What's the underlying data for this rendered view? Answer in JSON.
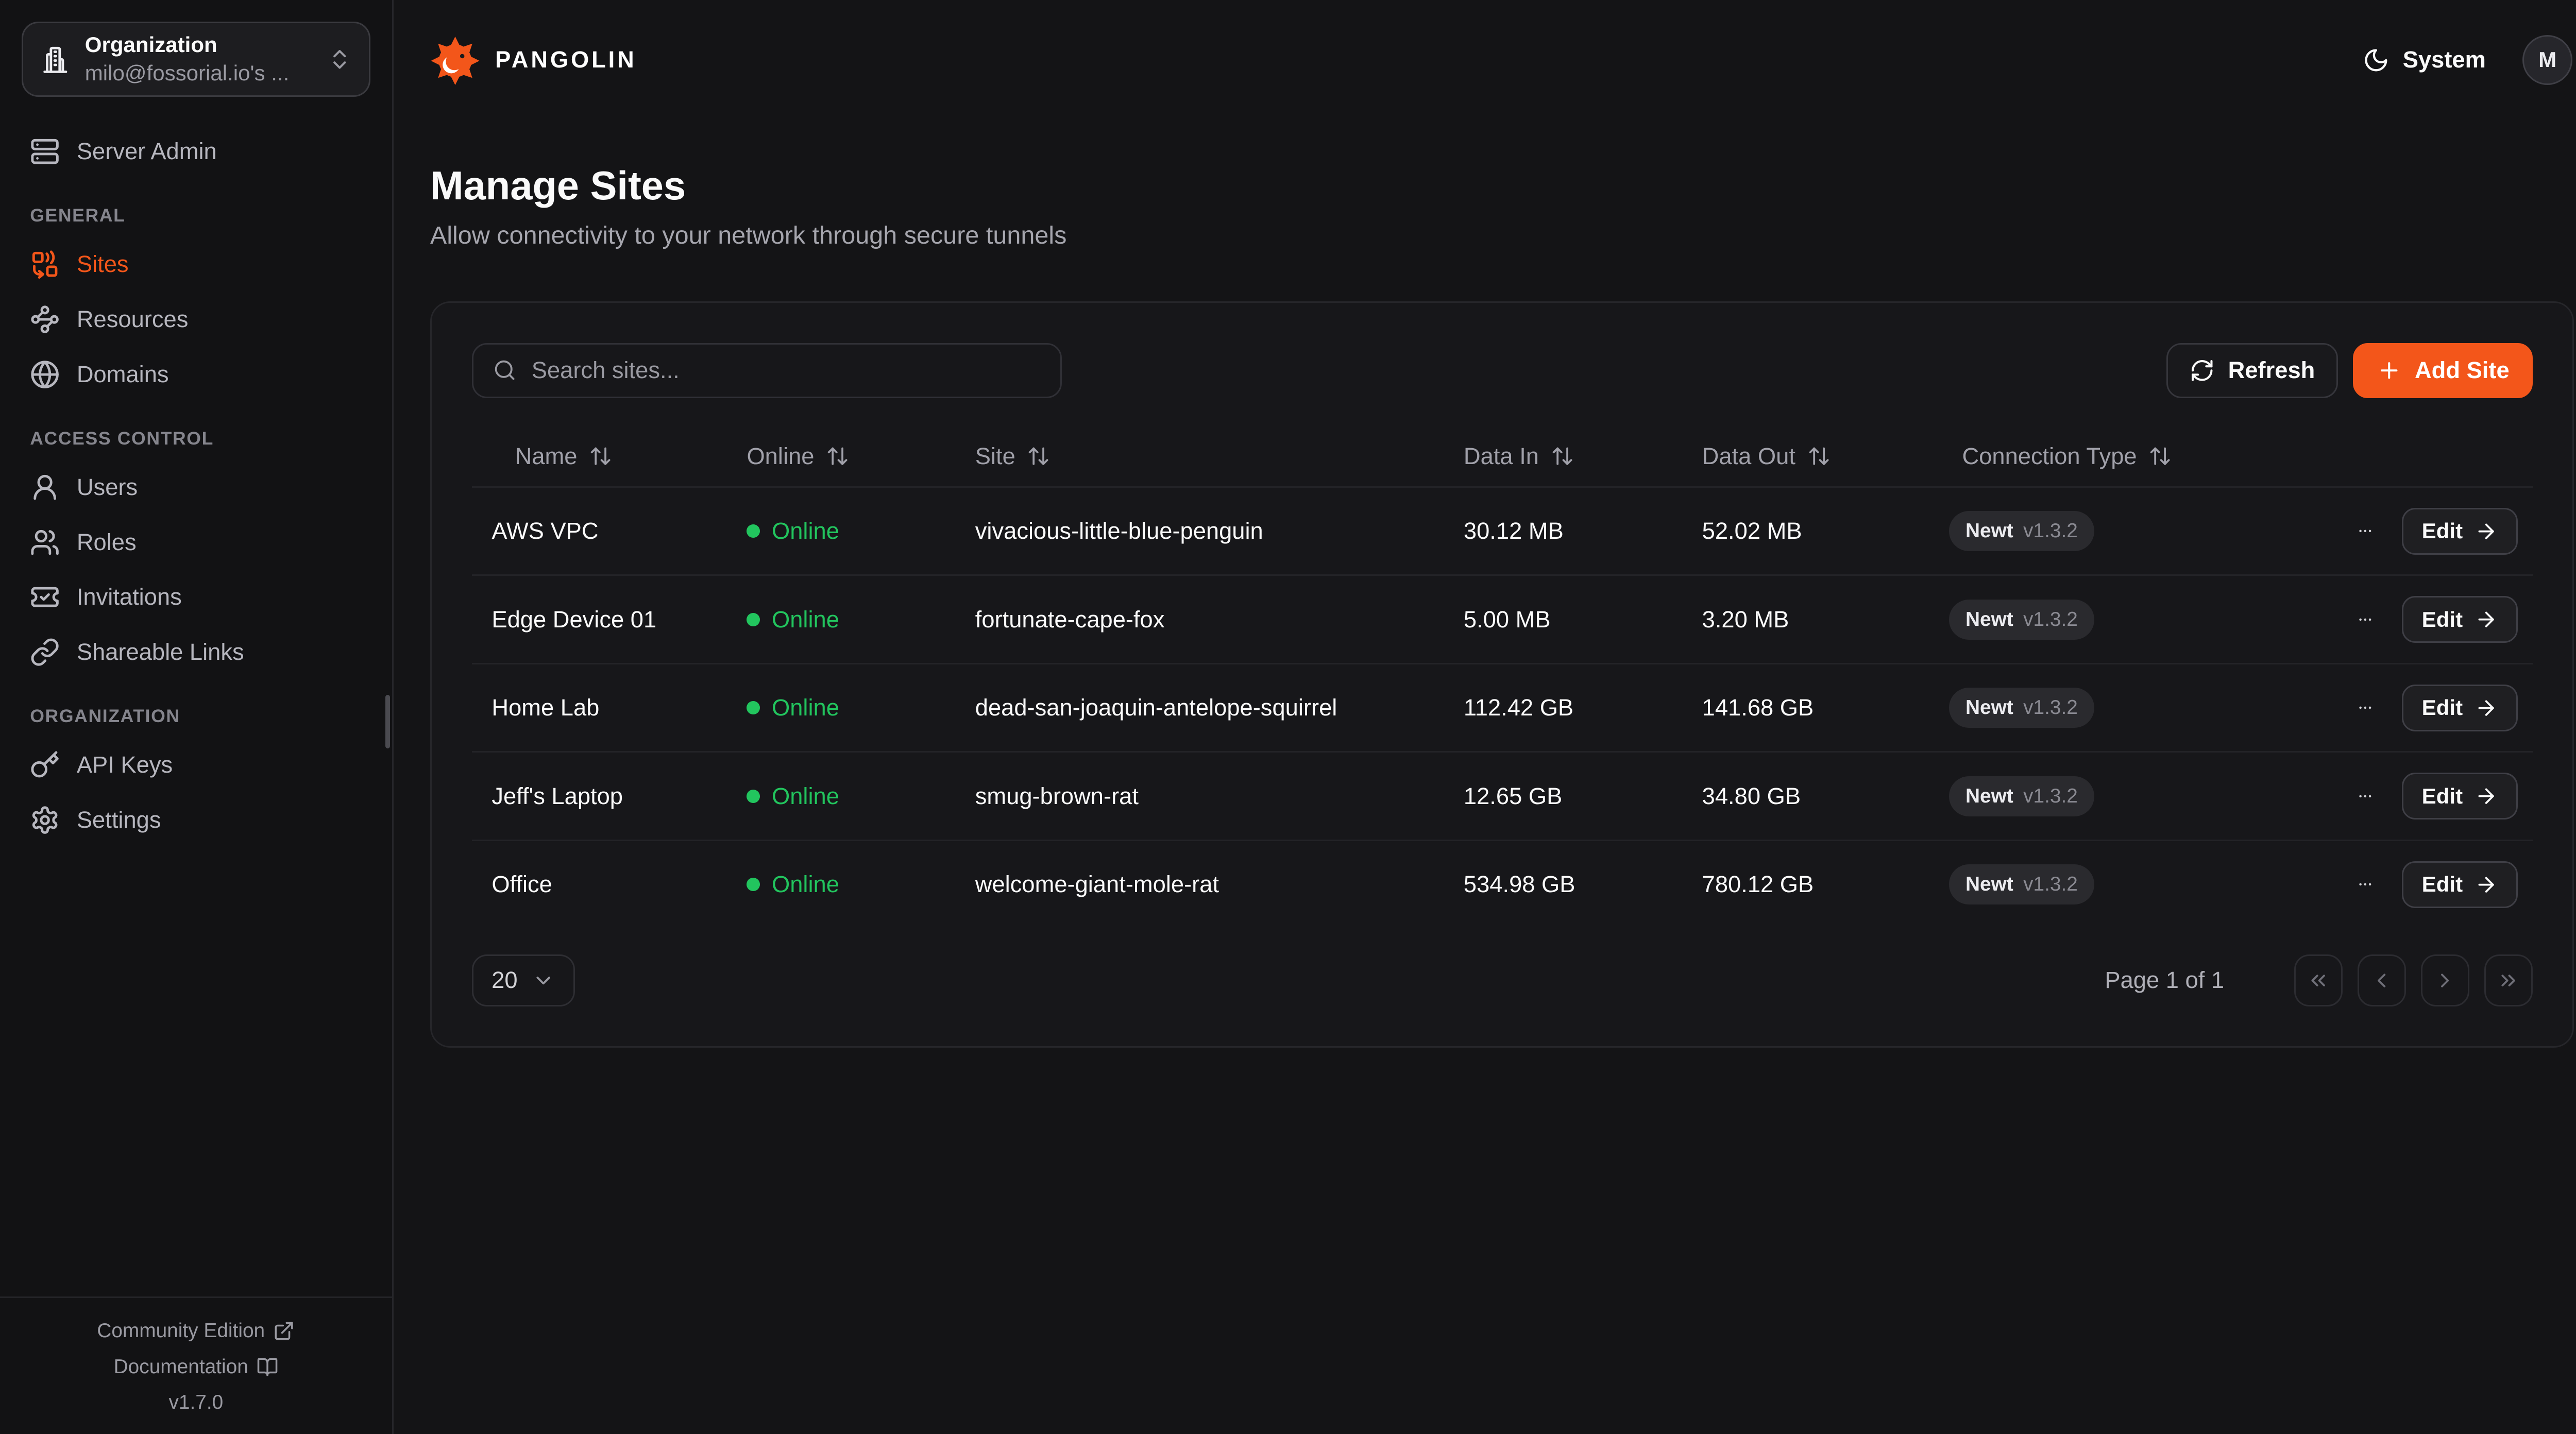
{
  "colors": {
    "accent": "#f3561a",
    "online": "#22c55e"
  },
  "org_selector": {
    "label": "Organization",
    "value": "milo@fossorial.io's ...",
    "icon": "building-icon"
  },
  "sidebar": {
    "top_items": [
      {
        "label": "Server Admin",
        "icon": "server-icon",
        "active": false
      }
    ],
    "sections": [
      {
        "label": "GENERAL",
        "items": [
          {
            "label": "Sites",
            "icon": "combine-icon",
            "active": true
          },
          {
            "label": "Resources",
            "icon": "waypoints-icon",
            "active": false
          },
          {
            "label": "Domains",
            "icon": "globe-icon",
            "active": false
          }
        ]
      },
      {
        "label": "ACCESS CONTROL",
        "items": [
          {
            "label": "Users",
            "icon": "user-icon",
            "active": false
          },
          {
            "label": "Roles",
            "icon": "users-icon",
            "active": false
          },
          {
            "label": "Invitations",
            "icon": "ticket-check-icon",
            "active": false
          },
          {
            "label": "Shareable Links",
            "icon": "link-icon",
            "active": false
          }
        ]
      },
      {
        "label": "ORGANIZATION",
        "items": [
          {
            "label": "API Keys",
            "icon": "key-icon",
            "active": false
          },
          {
            "label": "Settings",
            "icon": "settings-icon",
            "active": false
          }
        ]
      }
    ],
    "footer": {
      "community_label": "Community Edition",
      "docs_label": "Documentation",
      "version": "v1.7.0"
    }
  },
  "topbar": {
    "brand": "PANGOLIN",
    "theme_label": "System",
    "avatar_initial": "M"
  },
  "page": {
    "title": "Manage Sites",
    "subtitle": "Allow connectivity to your network through secure tunnels"
  },
  "toolbar": {
    "search_placeholder": "Search sites...",
    "refresh_label": "Refresh",
    "add_label": "Add Site"
  },
  "table": {
    "columns": [
      {
        "label": "Name"
      },
      {
        "label": "Online"
      },
      {
        "label": "Site"
      },
      {
        "label": "Data In"
      },
      {
        "label": "Data Out"
      },
      {
        "label": "Connection Type"
      }
    ],
    "edit_label": "Edit",
    "rows": [
      {
        "name": "AWS VPC",
        "status": "Online",
        "site": "vivacious-little-blue-penguin",
        "data_in": "30.12 MB",
        "data_out": "52.02 MB",
        "conn_type": "Newt",
        "conn_version": "v1.3.2"
      },
      {
        "name": "Edge Device 01",
        "status": "Online",
        "site": "fortunate-cape-fox",
        "data_in": "5.00 MB",
        "data_out": "3.20 MB",
        "conn_type": "Newt",
        "conn_version": "v1.3.2"
      },
      {
        "name": "Home Lab",
        "status": "Online",
        "site": "dead-san-joaquin-antelope-squirrel",
        "data_in": "112.42 GB",
        "data_out": "141.68 GB",
        "conn_type": "Newt",
        "conn_version": "v1.3.2"
      },
      {
        "name": "Jeff's Laptop",
        "status": "Online",
        "site": "smug-brown-rat",
        "data_in": "12.65 GB",
        "data_out": "34.80 GB",
        "conn_type": "Newt",
        "conn_version": "v1.3.2"
      },
      {
        "name": "Office",
        "status": "Online",
        "site": "welcome-giant-mole-rat",
        "data_in": "534.98 GB",
        "data_out": "780.12 GB",
        "conn_type": "Newt",
        "conn_version": "v1.3.2"
      }
    ]
  },
  "pagination": {
    "page_size": "20",
    "page_label": "Page 1 of 1"
  }
}
